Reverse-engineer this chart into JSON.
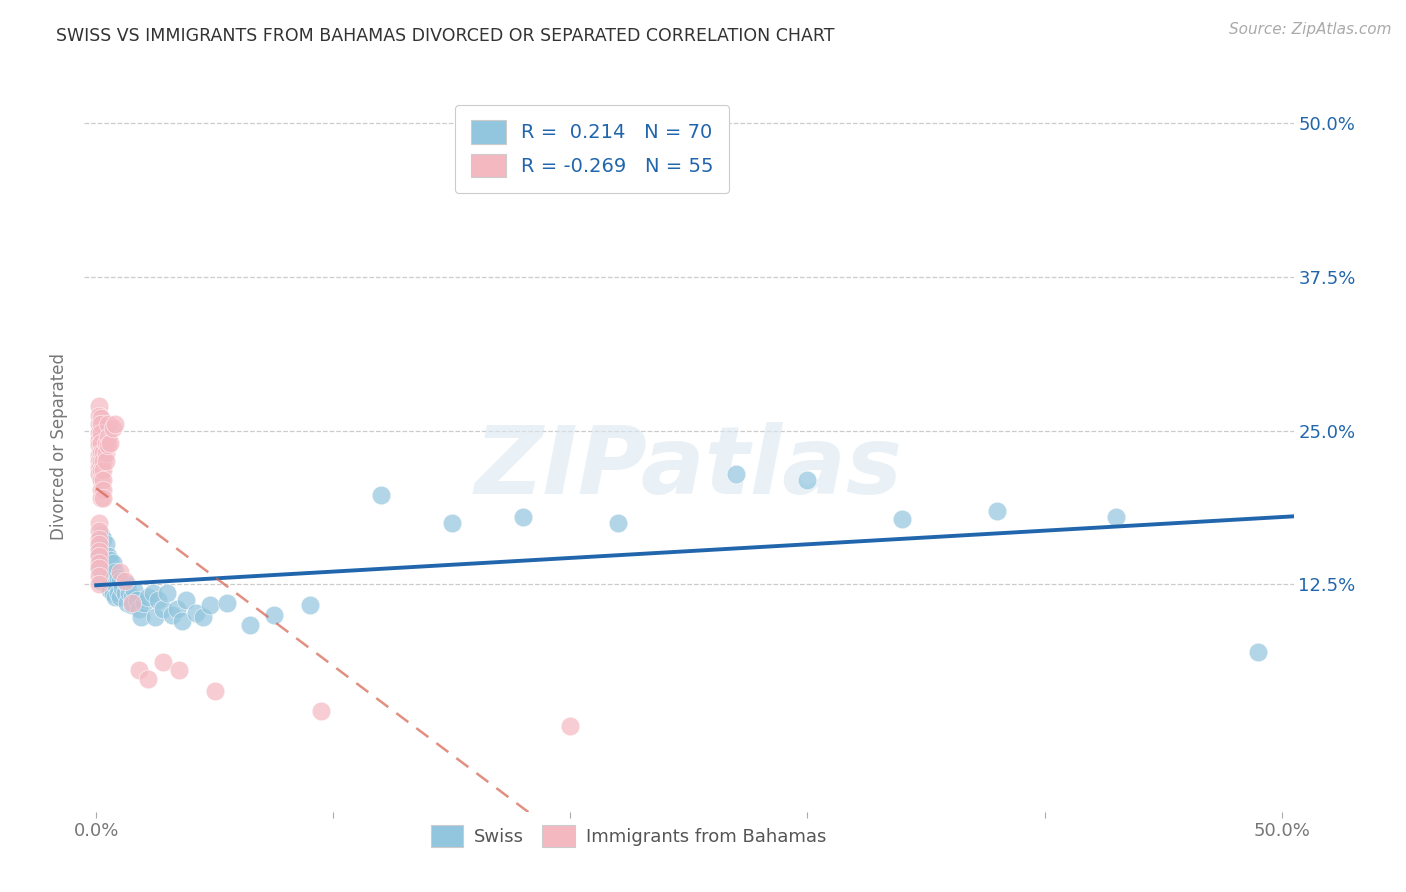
{
  "title": "SWISS VS IMMIGRANTS FROM BAHAMAS DIVORCED OR SEPARATED CORRELATION CHART",
  "source": "Source: ZipAtlas.com",
  "ylabel": "Divorced or Separated",
  "xlim": [
    -0.005,
    0.505
  ],
  "ylim": [
    -0.06,
    0.535
  ],
  "xtick_positions": [
    0.0,
    0.1,
    0.2,
    0.3,
    0.4,
    0.5
  ],
  "xtick_labels": [
    "0.0%",
    "",
    "",
    "",
    "",
    "50.0%"
  ],
  "ytick_positions": [
    0.125,
    0.25,
    0.375,
    0.5
  ],
  "ytick_labels": [
    "12.5%",
    "25.0%",
    "37.5%",
    "50.0%"
  ],
  "watermark": "ZIPatlas",
  "blue_color": "#92c5de",
  "pink_color": "#f4b8c1",
  "blue_line_color": "#2166ac",
  "pink_line_color": "#d6604d",
  "grid_color": "#cccccc",
  "background_color": "#ffffff",
  "swiss_x": [
    0.001,
    0.001,
    0.001,
    0.002,
    0.002,
    0.002,
    0.003,
    0.003,
    0.003,
    0.003,
    0.004,
    0.004,
    0.004,
    0.005,
    0.005,
    0.005,
    0.005,
    0.006,
    0.006,
    0.006,
    0.006,
    0.007,
    0.007,
    0.007,
    0.008,
    0.008,
    0.008,
    0.009,
    0.009,
    0.01,
    0.01,
    0.011,
    0.012,
    0.013,
    0.013,
    0.014,
    0.015,
    0.015,
    0.016,
    0.017,
    0.018,
    0.019,
    0.02,
    0.022,
    0.024,
    0.025,
    0.026,
    0.028,
    0.03,
    0.032,
    0.034,
    0.036,
    0.038,
    0.042,
    0.045,
    0.048,
    0.055,
    0.065,
    0.075,
    0.09,
    0.12,
    0.15,
    0.18,
    0.22,
    0.27,
    0.3,
    0.34,
    0.38,
    0.43,
    0.49
  ],
  "swiss_y": [
    0.155,
    0.148,
    0.138,
    0.165,
    0.14,
    0.128,
    0.162,
    0.15,
    0.132,
    0.142,
    0.158,
    0.145,
    0.128,
    0.148,
    0.138,
    0.13,
    0.125,
    0.145,
    0.132,
    0.12,
    0.128,
    0.142,
    0.128,
    0.118,
    0.135,
    0.125,
    0.115,
    0.13,
    0.118,
    0.128,
    0.115,
    0.122,
    0.118,
    0.125,
    0.11,
    0.118,
    0.115,
    0.108,
    0.12,
    0.112,
    0.105,
    0.098,
    0.11,
    0.115,
    0.118,
    0.098,
    0.112,
    0.105,
    0.118,
    0.1,
    0.105,
    0.095,
    0.112,
    0.102,
    0.098,
    0.108,
    0.11,
    0.092,
    0.1,
    0.108,
    0.198,
    0.175,
    0.18,
    0.175,
    0.215,
    0.21,
    0.178,
    0.185,
    0.18,
    0.07
  ],
  "bahamas_x": [
    0.001,
    0.001,
    0.001,
    0.001,
    0.001,
    0.001,
    0.001,
    0.001,
    0.001,
    0.001,
    0.001,
    0.001,
    0.001,
    0.001,
    0.001,
    0.001,
    0.001,
    0.001,
    0.001,
    0.001,
    0.002,
    0.002,
    0.002,
    0.002,
    0.002,
    0.002,
    0.002,
    0.002,
    0.002,
    0.002,
    0.003,
    0.003,
    0.003,
    0.003,
    0.003,
    0.003,
    0.004,
    0.004,
    0.004,
    0.005,
    0.005,
    0.005,
    0.006,
    0.007,
    0.008,
    0.01,
    0.012,
    0.015,
    0.018,
    0.022,
    0.028,
    0.035,
    0.05,
    0.095,
    0.2
  ],
  "bahamas_y": [
    0.27,
    0.262,
    0.255,
    0.248,
    0.242,
    0.238,
    0.23,
    0.225,
    0.22,
    0.215,
    0.175,
    0.168,
    0.162,
    0.158,
    0.152,
    0.148,
    0.142,
    0.138,
    0.132,
    0.125,
    0.26,
    0.255,
    0.248,
    0.24,
    0.232,
    0.225,
    0.218,
    0.21,
    0.202,
    0.195,
    0.232,
    0.225,
    0.218,
    0.21,
    0.202,
    0.195,
    0.24,
    0.232,
    0.225,
    0.255,
    0.245,
    0.238,
    0.24,
    0.252,
    0.255,
    0.135,
    0.128,
    0.11,
    0.055,
    0.048,
    0.062,
    0.055,
    0.038,
    0.022,
    0.01
  ]
}
